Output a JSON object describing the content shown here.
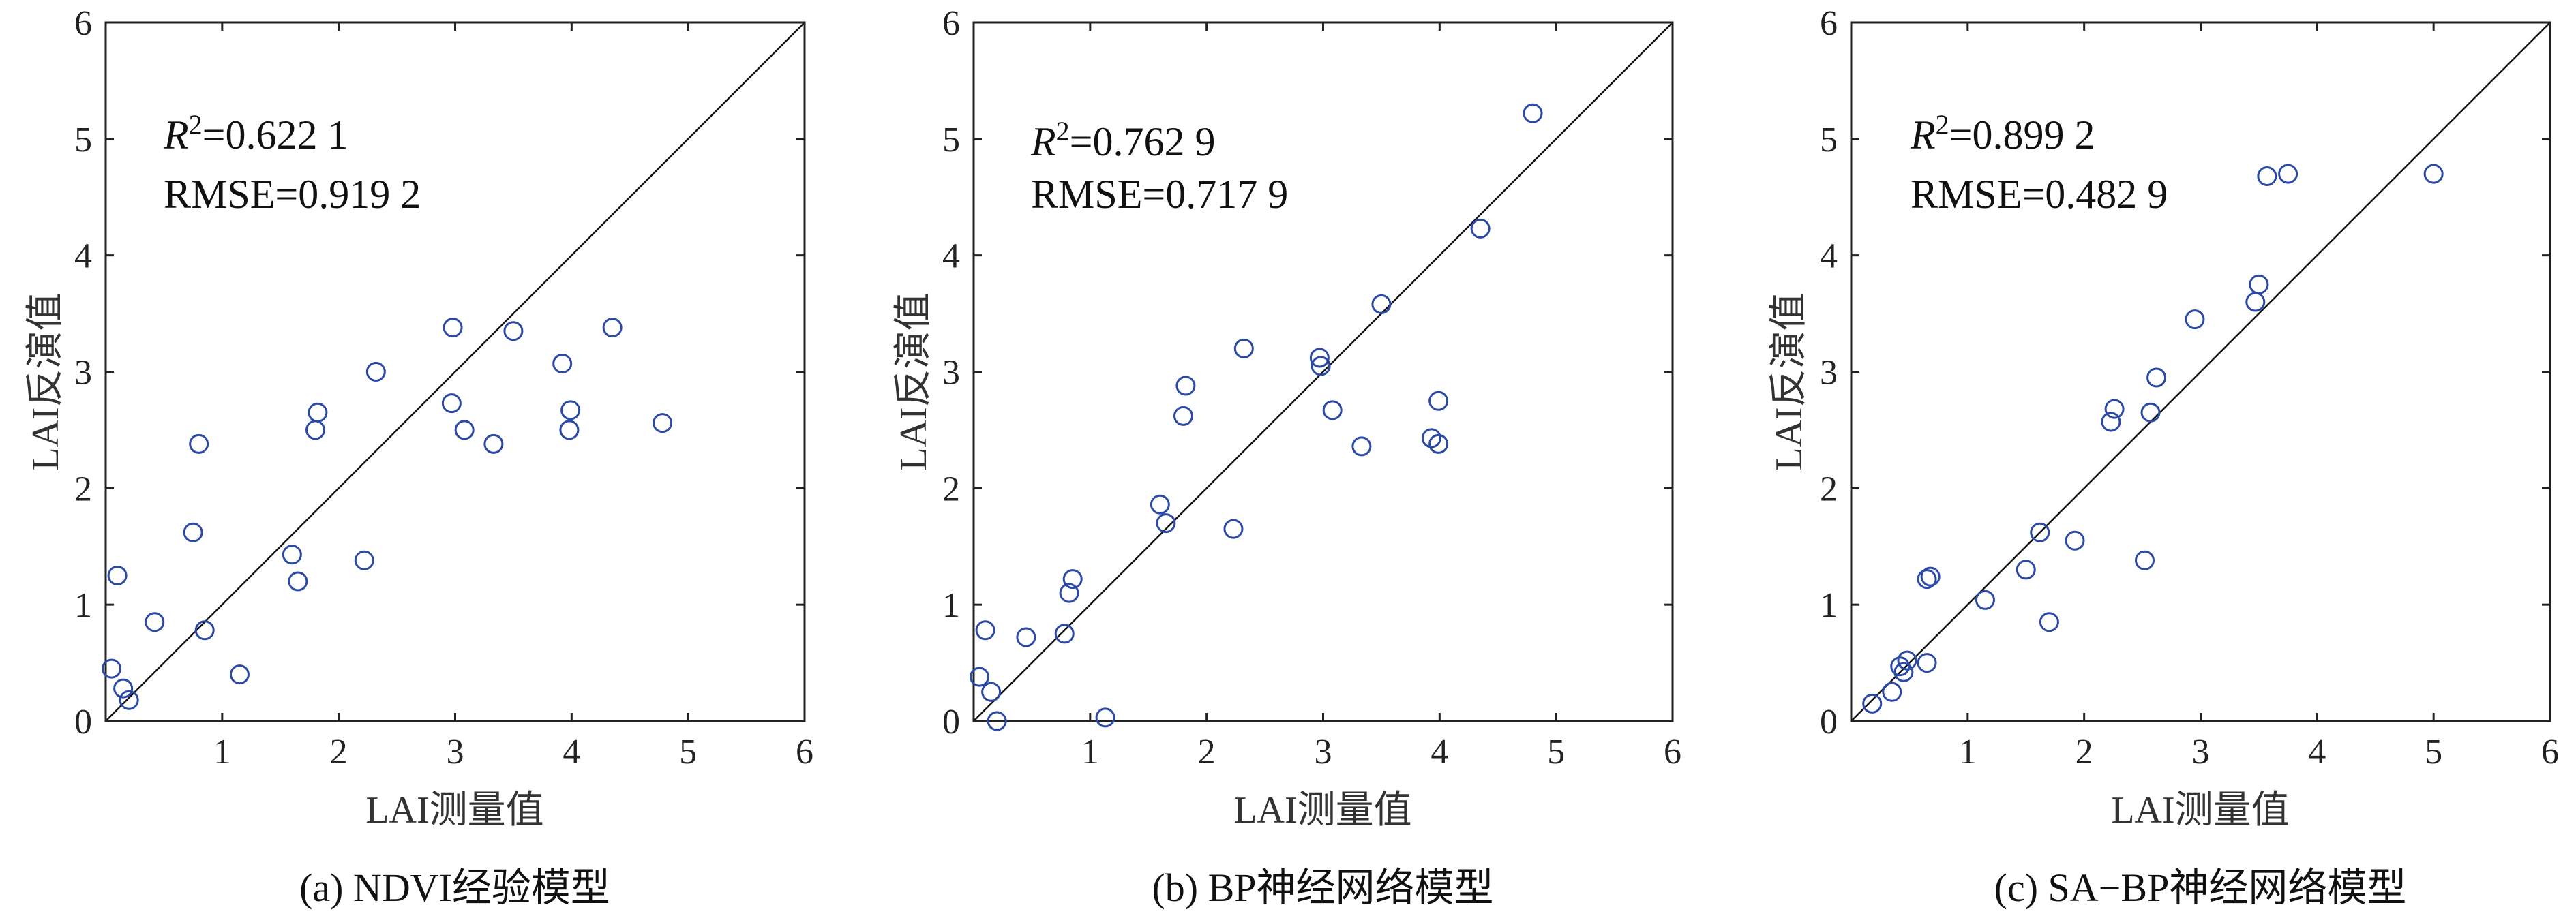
{
  "chart_data": [
    {
      "type": "scatter",
      "xlabel": "LAI测量值",
      "ylabel": "LAI反演值",
      "xlim": [
        0,
        6
      ],
      "ylim": [
        0,
        6
      ],
      "xticks": [
        "1",
        "2",
        "3",
        "4",
        "5",
        "6"
      ],
      "yticks": [
        "0",
        "1",
        "2",
        "3",
        "4",
        "5",
        "6"
      ],
      "reference_line": "y = x",
      "stats": {
        "r2_symbol": "R",
        "r2_sup": "2",
        "r2_value": "=0.622 1",
        "rmse": "RMSE=0.919 2"
      },
      "caption": "(a) NDVI经验模型",
      "points": [
        [
          0.05,
          0.45
        ],
        [
          0.1,
          1.25
        ],
        [
          0.15,
          0.28
        ],
        [
          0.2,
          0.18
        ],
        [
          0.42,
          0.85
        ],
        [
          0.75,
          1.62
        ],
        [
          0.8,
          2.38
        ],
        [
          0.85,
          0.78
        ],
        [
          1.15,
          0.4
        ],
        [
          1.6,
          1.43
        ],
        [
          1.65,
          1.2
        ],
        [
          1.8,
          2.5
        ],
        [
          1.82,
          2.65
        ],
        [
          2.22,
          1.38
        ],
        [
          2.32,
          3.0
        ],
        [
          2.97,
          2.73
        ],
        [
          2.98,
          3.38
        ],
        [
          3.08,
          2.5
        ],
        [
          3.33,
          2.38
        ],
        [
          3.5,
          3.35
        ],
        [
          3.92,
          3.07
        ],
        [
          3.98,
          2.5
        ],
        [
          3.99,
          2.67
        ],
        [
          4.35,
          3.38
        ],
        [
          4.78,
          2.56
        ]
      ]
    },
    {
      "type": "scatter",
      "xlabel": "LAI测量值",
      "ylabel": "LAI反演值",
      "xlim": [
        0,
        6
      ],
      "ylim": [
        0,
        6
      ],
      "xticks": [
        "1",
        "2",
        "3",
        "4",
        "5",
        "6"
      ],
      "yticks": [
        "0",
        "1",
        "2",
        "3",
        "4",
        "5",
        "6"
      ],
      "reference_line": "y = x",
      "stats": {
        "r2_symbol": "R",
        "r2_sup": "2",
        "r2_value": "=0.762 9",
        "rmse": "RMSE=0.717 9"
      },
      "caption": "(b) BP神经网络模型",
      "points": [
        [
          0.05,
          0.38
        ],
        [
          0.1,
          0.78
        ],
        [
          0.15,
          0.25
        ],
        [
          0.2,
          0.0
        ],
        [
          0.45,
          0.72
        ],
        [
          0.78,
          0.75
        ],
        [
          0.82,
          1.1
        ],
        [
          0.85,
          1.22
        ],
        [
          1.13,
          0.03
        ],
        [
          1.6,
          1.86
        ],
        [
          1.65,
          1.7
        ],
        [
          1.8,
          2.62
        ],
        [
          1.82,
          2.88
        ],
        [
          2.23,
          1.65
        ],
        [
          2.32,
          3.2
        ],
        [
          2.97,
          3.12
        ],
        [
          2.98,
          3.05
        ],
        [
          3.08,
          2.67
        ],
        [
          3.33,
          2.36
        ],
        [
          3.5,
          3.58
        ],
        [
          3.93,
          2.43
        ],
        [
          3.99,
          2.38
        ],
        [
          3.99,
          2.75
        ],
        [
          4.35,
          4.23
        ],
        [
          4.8,
          5.22
        ]
      ]
    },
    {
      "type": "scatter",
      "xlabel": "LAI测量值",
      "ylabel": "LAI反演值",
      "xlim": [
        0,
        6
      ],
      "ylim": [
        0,
        6
      ],
      "xticks": [
        "1",
        "2",
        "3",
        "4",
        "5",
        "6"
      ],
      "yticks": [
        "0",
        "1",
        "2",
        "3",
        "4",
        "5",
        "6"
      ],
      "reference_line": "y = x",
      "stats": {
        "r2_symbol": "R",
        "r2_sup": "2",
        "r2_value": "=0.899 2",
        "rmse": "RMSE=0.482 9"
      },
      "caption": "(c) SA−BP神经网络模型",
      "points": [
        [
          0.18,
          0.15
        ],
        [
          0.35,
          0.25
        ],
        [
          0.42,
          0.47
        ],
        [
          0.45,
          0.42
        ],
        [
          0.48,
          0.52
        ],
        [
          0.65,
          0.5
        ],
        [
          0.65,
          1.22
        ],
        [
          0.68,
          1.24
        ],
        [
          1.15,
          1.04
        ],
        [
          1.5,
          1.3
        ],
        [
          1.62,
          1.62
        ],
        [
          1.7,
          0.85
        ],
        [
          1.92,
          1.55
        ],
        [
          2.23,
          2.57
        ],
        [
          2.26,
          2.68
        ],
        [
          2.52,
          1.38
        ],
        [
          2.57,
          2.65
        ],
        [
          2.62,
          2.95
        ],
        [
          2.95,
          3.45
        ],
        [
          3.47,
          3.6
        ],
        [
          3.5,
          3.75
        ],
        [
          3.57,
          4.68
        ],
        [
          3.75,
          4.7
        ],
        [
          5.0,
          4.7
        ]
      ]
    }
  ]
}
